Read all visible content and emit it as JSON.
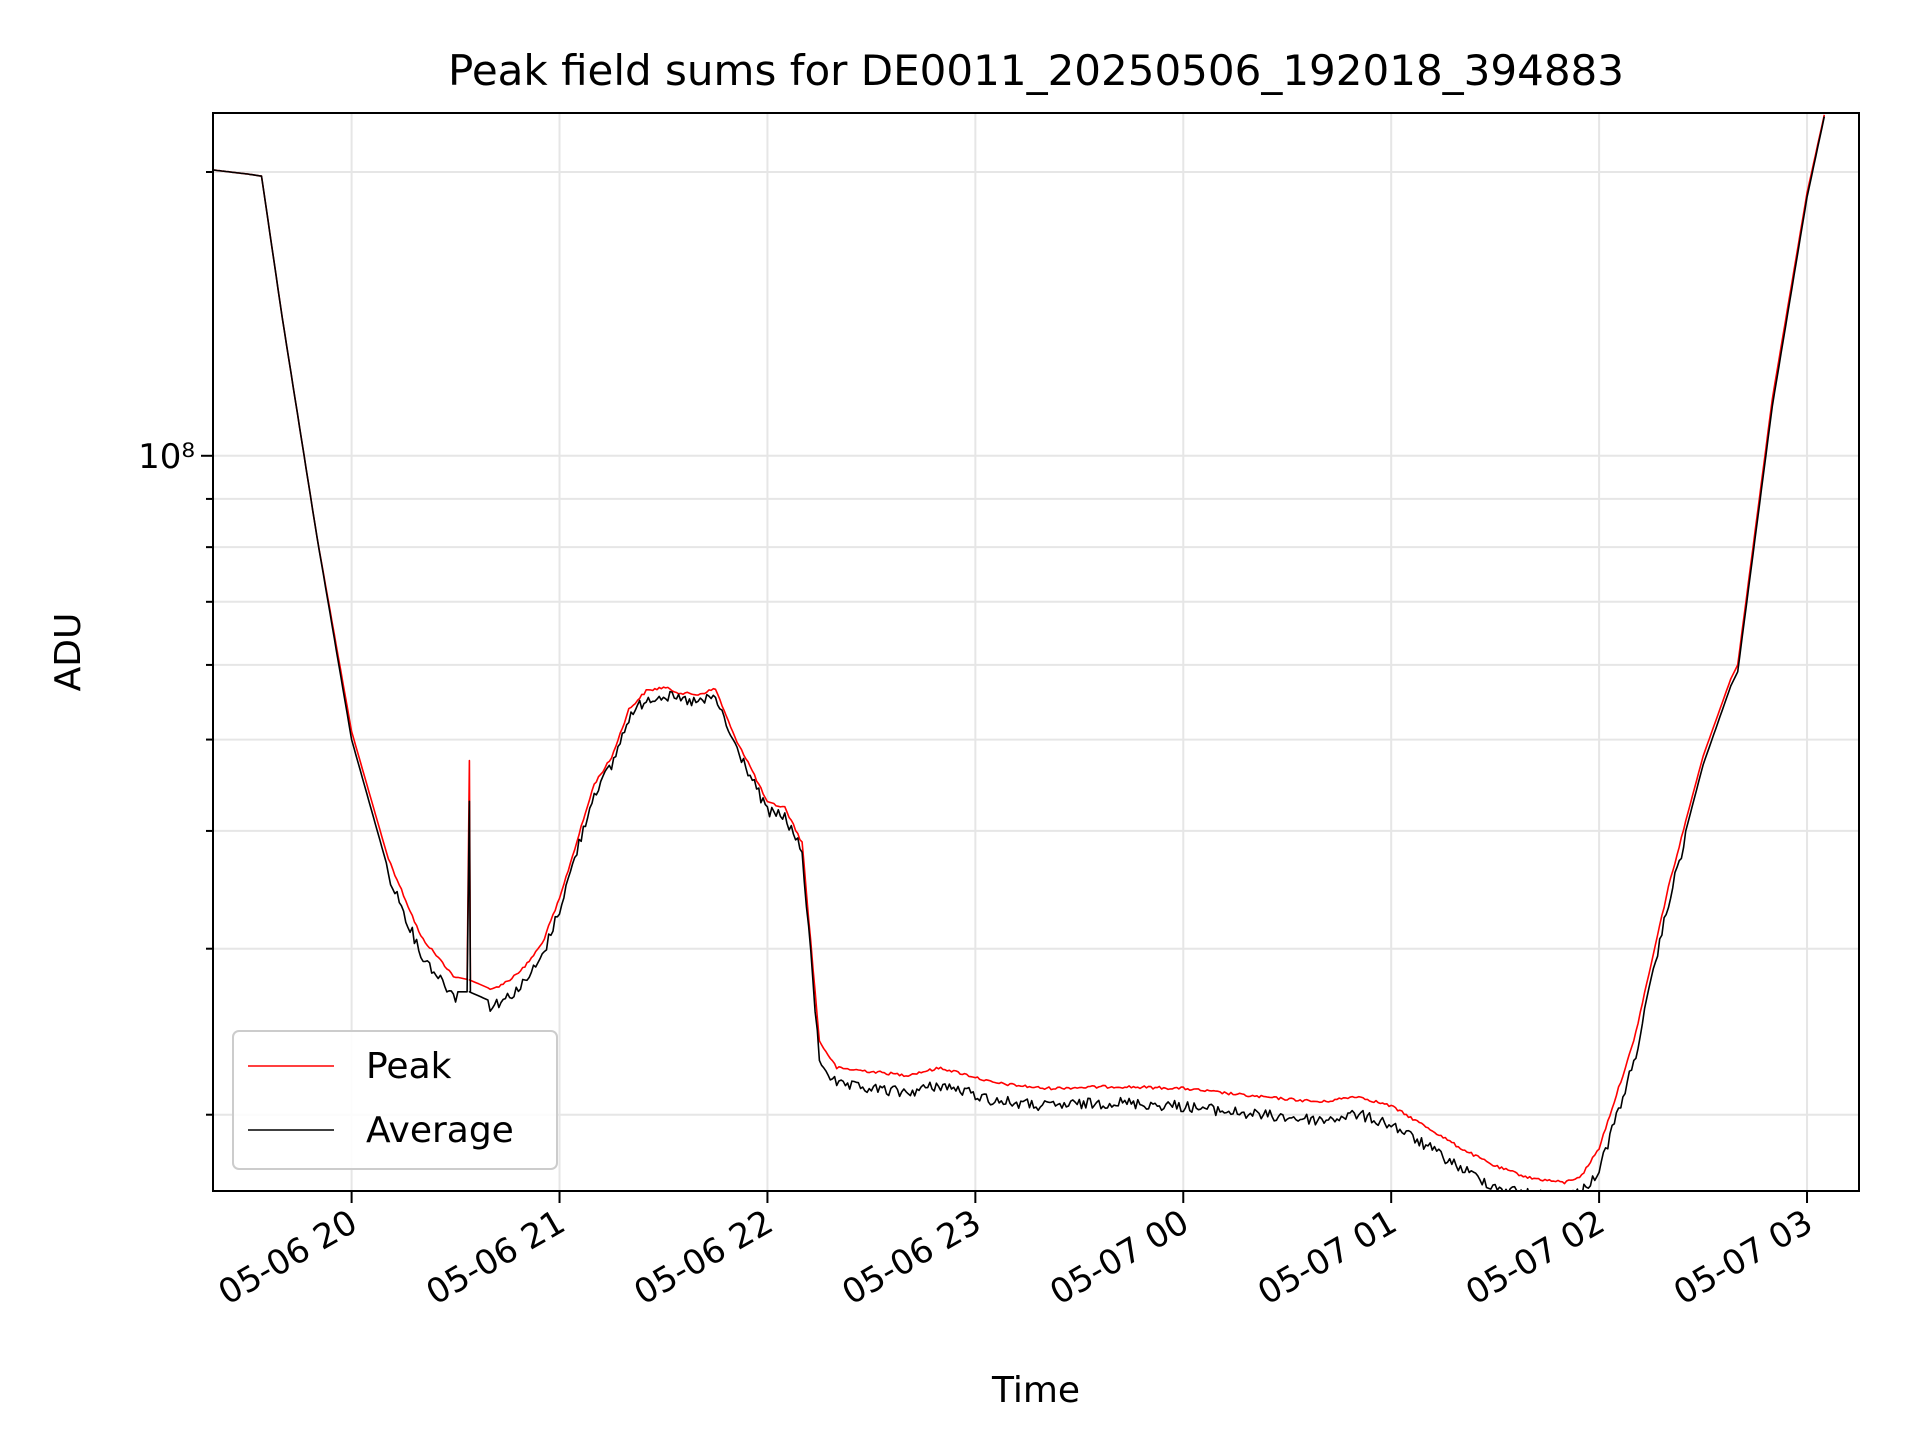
{
  "chart_data": {
    "type": "line",
    "title": "Peak field sums for DE0011_20250506_192018_394883",
    "xlabel": "Time",
    "ylabel": "ADU",
    "y_scale": "log",
    "grid": true,
    "legend_position": "lower-left",
    "x_range": [
      "05-06 19:20",
      "05-07 03:15"
    ],
    "y_range": [
      16600000,
      231000000
    ],
    "x_tick_labels": [
      "05-06 20",
      "05-06 21",
      "05-06 22",
      "05-06 23",
      "05-07 00",
      "05-07 01",
      "05-07 02",
      "05-07 03"
    ],
    "y_major_tick_label": "10⁸",
    "y_major_tick_value": 100000000,
    "y_minor_tick_values": [
      20000000,
      30000000,
      40000000,
      50000000,
      60000000,
      70000000,
      80000000,
      90000000,
      200000000
    ],
    "x": [
      "05-06 19:20",
      "05-06 19:30",
      "05-06 19:34",
      "05-06 19:40",
      "05-06 19:50",
      "05-06 20:00",
      "05-06 20:10",
      "05-06 20:20",
      "05-06 20:30",
      "05-06 20:34",
      "05-06 20:38",
      "05-06 20:40",
      "05-06 20:45",
      "05-06 20:50",
      "05-06 20:55",
      "05-06 21:00",
      "05-06 21:10",
      "05-06 21:15",
      "05-06 21:20",
      "05-06 21:25",
      "05-06 21:30",
      "05-06 21:35",
      "05-06 21:40",
      "05-06 21:45",
      "05-06 21:50",
      "05-06 21:55",
      "05-06 22:00",
      "05-06 22:05",
      "05-06 22:10",
      "05-06 22:15",
      "05-06 22:20",
      "05-06 22:25",
      "05-06 22:30",
      "05-06 22:40",
      "05-06 22:50",
      "05-06 23:00",
      "05-06 23:05",
      "05-06 23:20",
      "05-06 23:40",
      "05-07 00:00",
      "05-07 00:20",
      "05-07 00:40",
      "05-07 00:50",
      "05-07 01:00",
      "05-07 01:10",
      "05-07 01:20",
      "05-07 01:30",
      "05-07 01:40",
      "05-07 01:50",
      "05-07 01:55",
      "05-07 02:00",
      "05-07 02:10",
      "05-07 02:20",
      "05-07 02:30",
      "05-07 02:38",
      "05-07 02:40",
      "05-07 02:50",
      "05-07 03:00",
      "05-07 03:05"
    ],
    "series": [
      {
        "name": "Peak",
        "color": "#ff0000",
        "values": [
          201000000,
          199000000,
          198000000,
          140000000,
          82000000,
          51000000,
          38000000,
          31000000,
          28000000,
          27800000,
          27400000,
          27200000,
          27800000,
          28800000,
          30500000,
          34000000,
          45000000,
          48000000,
          54000000,
          56500000,
          57000000,
          56200000,
          56000000,
          56800000,
          51000000,
          47000000,
          43000000,
          42500000,
          39000000,
          24000000,
          22500000,
          22400000,
          22300000,
          22100000,
          22500000,
          22000000,
          21700000,
          21400000,
          21500000,
          21400000,
          21000000,
          20700000,
          21000000,
          20500000,
          19500000,
          18500000,
          17700000,
          17200000,
          17000000,
          17300000,
          18500000,
          24000000,
          35000000,
          48000000,
          58000000,
          60000000,
          115000000,
          190000000,
          230000000
        ]
      },
      {
        "name": "Average",
        "color": "#000000",
        "values": [
          201000000,
          199000000,
          198000000,
          140000000,
          82000000,
          50000000,
          37000000,
          30000000,
          27000000,
          27000000,
          26600000,
          26400000,
          27000000,
          28000000,
          29800000,
          33500000,
          44500000,
          47500000,
          53500000,
          56000000,
          56500000,
          55800000,
          55500000,
          56200000,
          50500000,
          46500000,
          42500000,
          42000000,
          38500000,
          23200000,
          21800000,
          21700000,
          21600000,
          21400000,
          21800000,
          21300000,
          21000000,
          20700000,
          20900000,
          20700000,
          20300000,
          20000000,
          20300000,
          19800000,
          18800000,
          17800000,
          17000000,
          16700000,
          16600000,
          16800000,
          17700000,
          23000000,
          34000000,
          47000000,
          57000000,
          59000000,
          113000000,
          188000000,
          229000000
        ]
      }
    ]
  }
}
